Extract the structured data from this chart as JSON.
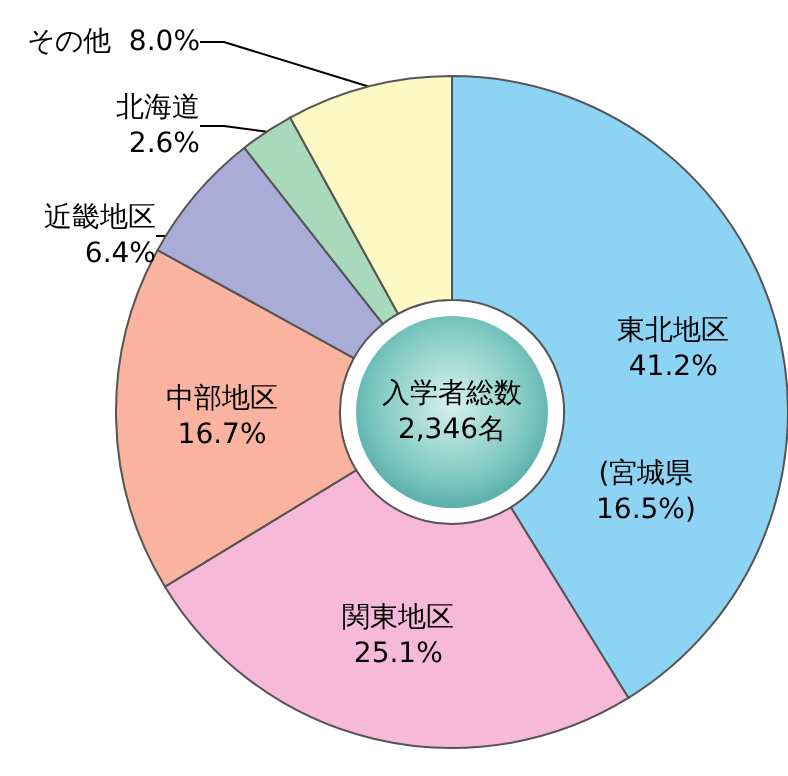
{
  "chart_data": {
    "type": "donut",
    "categories": [
      "東北地区",
      "関東地区",
      "中部地区",
      "近畿地区",
      "北海道",
      "その他"
    ],
    "values": [
      41.2,
      25.1,
      16.7,
      6.4,
      2.6,
      8.0
    ],
    "value_labels": [
      "41.2%",
      "25.1%",
      "16.7%",
      "6.4%",
      "2.6%",
      "8.0%"
    ],
    "colors": [
      "#8dd3f3",
      "#f6b9d9",
      "#f9b39e",
      "#a9acd6",
      "#a9d9bb",
      "#fdf8c4"
    ],
    "annotations": [
      "入学者総数 2,346名",
      "(宮城県 16.5%)"
    ],
    "legend": false
  }
}
